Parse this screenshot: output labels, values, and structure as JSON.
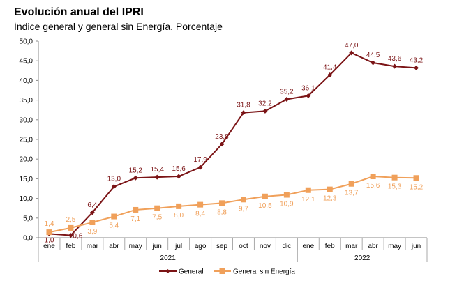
{
  "chart_data": {
    "type": "line",
    "title": "Evolución anual del IPRI",
    "subtitle": "Índice general y general sin Energía. Porcentaje",
    "categories": [
      "ene",
      "feb",
      "mar",
      "abr",
      "may",
      "jun",
      "jul",
      "ago",
      "sep",
      "oct",
      "nov",
      "dic",
      "ene",
      "feb",
      "mar",
      "abr",
      "may",
      "jun"
    ],
    "year_groups": [
      {
        "label": "2021",
        "count": 12
      },
      {
        "label": "2022",
        "count": 6
      }
    ],
    "ylim": [
      0,
      50
    ],
    "yticks": [
      "0,0",
      "5,0",
      "10,0",
      "15,0",
      "20,0",
      "25,0",
      "30,0",
      "35,0",
      "40,0",
      "45,0",
      "50,0"
    ],
    "grid": false,
    "legend_position": "bottom",
    "series": [
      {
        "name": "General",
        "color": "#7b1416",
        "marker": "diamond",
        "values": [
          1.0,
          0.6,
          6.4,
          13.0,
          15.2,
          15.4,
          15.6,
          17.9,
          23.8,
          31.8,
          32.2,
          35.2,
          36.1,
          41.4,
          47.0,
          44.5,
          43.6,
          43.2
        ],
        "labels": [
          "1,0",
          "0,6",
          "6,4",
          "13,0",
          "15,2",
          "15,4",
          "15,6",
          "17,9",
          "23,8",
          "31,8",
          "32,2",
          "35,2",
          "36,1",
          "41,4",
          "47,0",
          "44,5",
          "43,6",
          "43,2"
        ]
      },
      {
        "name": "General sin Energía",
        "color": "#f0a05a",
        "marker": "square",
        "values": [
          1.4,
          2.5,
          3.9,
          5.4,
          7.1,
          7.5,
          8.0,
          8.4,
          8.8,
          9.7,
          10.5,
          10.9,
          12.1,
          12.3,
          13.7,
          15.6,
          15.3,
          15.2
        ],
        "labels": [
          "1,4",
          "2,5",
          "3,9",
          "5,4",
          "7,1",
          "7,5",
          "8,0",
          "8,4",
          "8,8",
          "9,7",
          "10,5",
          "10,9",
          "12,1",
          "12,3",
          "13,7",
          "15,6",
          "15,3",
          "15,2"
        ]
      }
    ]
  }
}
